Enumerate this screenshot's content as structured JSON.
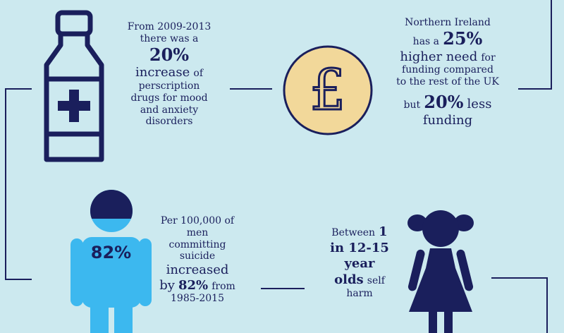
{
  "colors": {
    "background": "#cce9ef",
    "navy": "#1a1f5c",
    "light_blue": "#3cb8ef",
    "pound_coin": "#f2d89a"
  },
  "stat_prescription": {
    "line1": "From 2009-2013",
    "line2": "there was a",
    "highlight": "20%",
    "keyword": "increase",
    "of": "of",
    "line4": "perscription",
    "line5": "drugs for mood",
    "line6": "and anxiety",
    "line7": "disorders"
  },
  "stat_funding": {
    "line1": "Northern Ireland",
    "has_a": "has a",
    "highlight1": "25%",
    "higher_need": "higher need",
    "for": "for",
    "line4": "funding compared",
    "line5": "to the rest of the UK",
    "but": "but",
    "highlight2": "20%",
    "less": "less",
    "funding": "funding"
  },
  "stat_suicide": {
    "figure_label": "82%",
    "line1": "Per 100,000 of",
    "line2": "men",
    "line3": "committing",
    "line4": "suicide",
    "increased": "increased",
    "by": "by",
    "highlight": "82%",
    "from": "from",
    "years": "1985-2015"
  },
  "stat_self_harm": {
    "between": "Between",
    "one": "1",
    "line2": "in 12-15",
    "line3": "year",
    "olds": "olds",
    "self": "self",
    "harm": "harm"
  },
  "icons": [
    "medicine-bottle-icon",
    "pound-coin-icon",
    "man-figure-icon",
    "girl-figure-icon"
  ]
}
